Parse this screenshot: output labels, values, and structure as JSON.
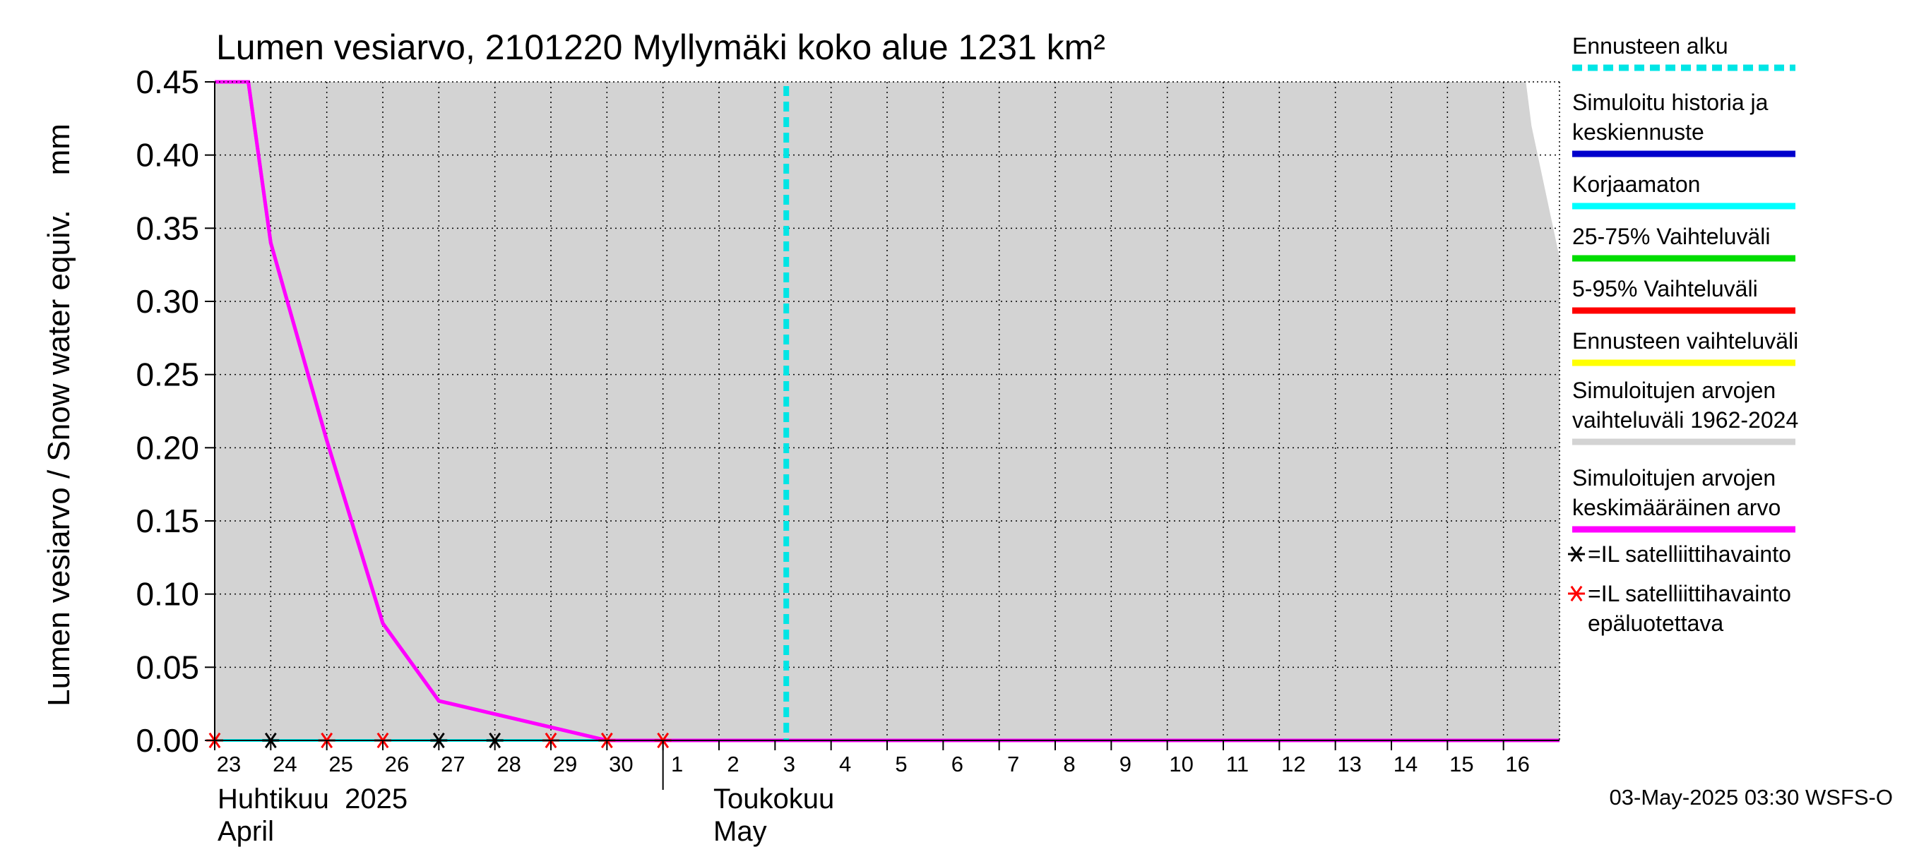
{
  "chart_data": {
    "type": "line",
    "title": "Lumen vesiarvo, 2101220 Myllymäki koko alue 1231 km²",
    "ylabel": "Lumen vesiarvo / Snow water equiv.    mm",
    "ylim": [
      0,
      0.45
    ],
    "yticks": [
      "0.00",
      "0.05",
      "0.10",
      "0.15",
      "0.20",
      "0.25",
      "0.30",
      "0.35",
      "0.40",
      "0.45"
    ],
    "x_days": [
      0,
      24
    ],
    "x_tick_labels": [
      "23",
      "24",
      "25",
      "26",
      "27",
      "28",
      "29",
      "30",
      "1",
      "2",
      "3",
      "4",
      "5",
      "6",
      "7",
      "8",
      "9",
      "10",
      "11",
      "12",
      "13",
      "14",
      "15",
      "16"
    ],
    "month_labels": [
      {
        "line1": "Huhtikuu  2025",
        "line2": "April",
        "day": 0
      },
      {
        "line1": "Toukokuu",
        "line2": "May",
        "day": 9
      }
    ],
    "month_divider_day": 8,
    "forecast_start_day": 10.2,
    "series": [
      {
        "name": "Simuloitujen arvojen keskimääräinen arvo",
        "color": "#ff00ff",
        "x": [
          0,
          0.6,
          1,
          2,
          3,
          4,
          5,
          6,
          7,
          8,
          24
        ],
        "y": [
          0.45,
          0.45,
          0.34,
          0.205,
          0.08,
          0.027,
          0.018,
          0.009,
          0.0,
          0.0,
          0.0
        ]
      },
      {
        "name": "Simuloitu historia ja keskiennuste",
        "color": "#0000ff",
        "x": [
          0,
          24
        ],
        "y": [
          0.0,
          0.0
        ]
      },
      {
        "name": "Korjaamaton",
        "color": "#00ffff",
        "x": [
          0,
          8
        ],
        "y": [
          0.0,
          0.0
        ]
      }
    ],
    "range_band": {
      "name": "Simuloitujen arvojen vaihteluväli 1962-2024",
      "color": "#d3d3d3",
      "upper_x": [
        0,
        23.4,
        23.5,
        24
      ],
      "upper_y": [
        0.45,
        0.45,
        0.42,
        0.33
      ]
    },
    "satellite_obs": [
      {
        "day": 0,
        "value": 0.0,
        "reliable": false
      },
      {
        "day": 1,
        "value": 0.0,
        "reliable": true
      },
      {
        "day": 2,
        "value": 0.0,
        "reliable": false
      },
      {
        "day": 3,
        "value": 0.0,
        "reliable": false
      },
      {
        "day": 4,
        "value": 0.0,
        "reliable": true
      },
      {
        "day": 5,
        "value": 0.0,
        "reliable": true
      },
      {
        "day": 6,
        "value": 0.0,
        "reliable": false
      },
      {
        "day": 7,
        "value": 0.0,
        "reliable": false
      },
      {
        "day": 8,
        "value": 0.0,
        "reliable": false
      }
    ],
    "legend": [
      {
        "lines": [
          "Ennusteen alku"
        ],
        "color": "#00e5e5",
        "style": "dashed"
      },
      {
        "lines": [
          "Simuloitu historia ja",
          "keskiennuste"
        ],
        "color": "#0000cc",
        "style": "solid"
      },
      {
        "lines": [
          "Korjaamaton"
        ],
        "color": "#00ffff",
        "style": "solid"
      },
      {
        "lines": [
          "25-75% Vaihteluväli"
        ],
        "color": "#00dd00",
        "style": "solid"
      },
      {
        "lines": [
          "5-95% Vaihteluväli"
        ],
        "color": "#ff0000",
        "style": "solid"
      },
      {
        "lines": [
          "Ennusteen vaihteluväli"
        ],
        "color": "#ffff00",
        "style": "solid"
      },
      {
        "lines": [
          "Simuloitujen arvojen",
          "vaihteluväli 1962-2024"
        ],
        "color": "#d3d3d3",
        "style": "solid"
      },
      {
        "lines": [
          "Simuloitujen arvojen",
          "keskimääräinen arvo"
        ],
        "color": "#ff00ff",
        "style": "solid"
      }
    ],
    "marker_legend": [
      {
        "lines": [
          "=IL satelliittihavainto"
        ],
        "color": "#000000"
      },
      {
        "lines": [
          "=IL satelliittihavainto",
          "epäluotettava"
        ],
        "color": "#ff0000"
      }
    ],
    "timestamp": "03-May-2025 03:30 WSFS-O"
  }
}
